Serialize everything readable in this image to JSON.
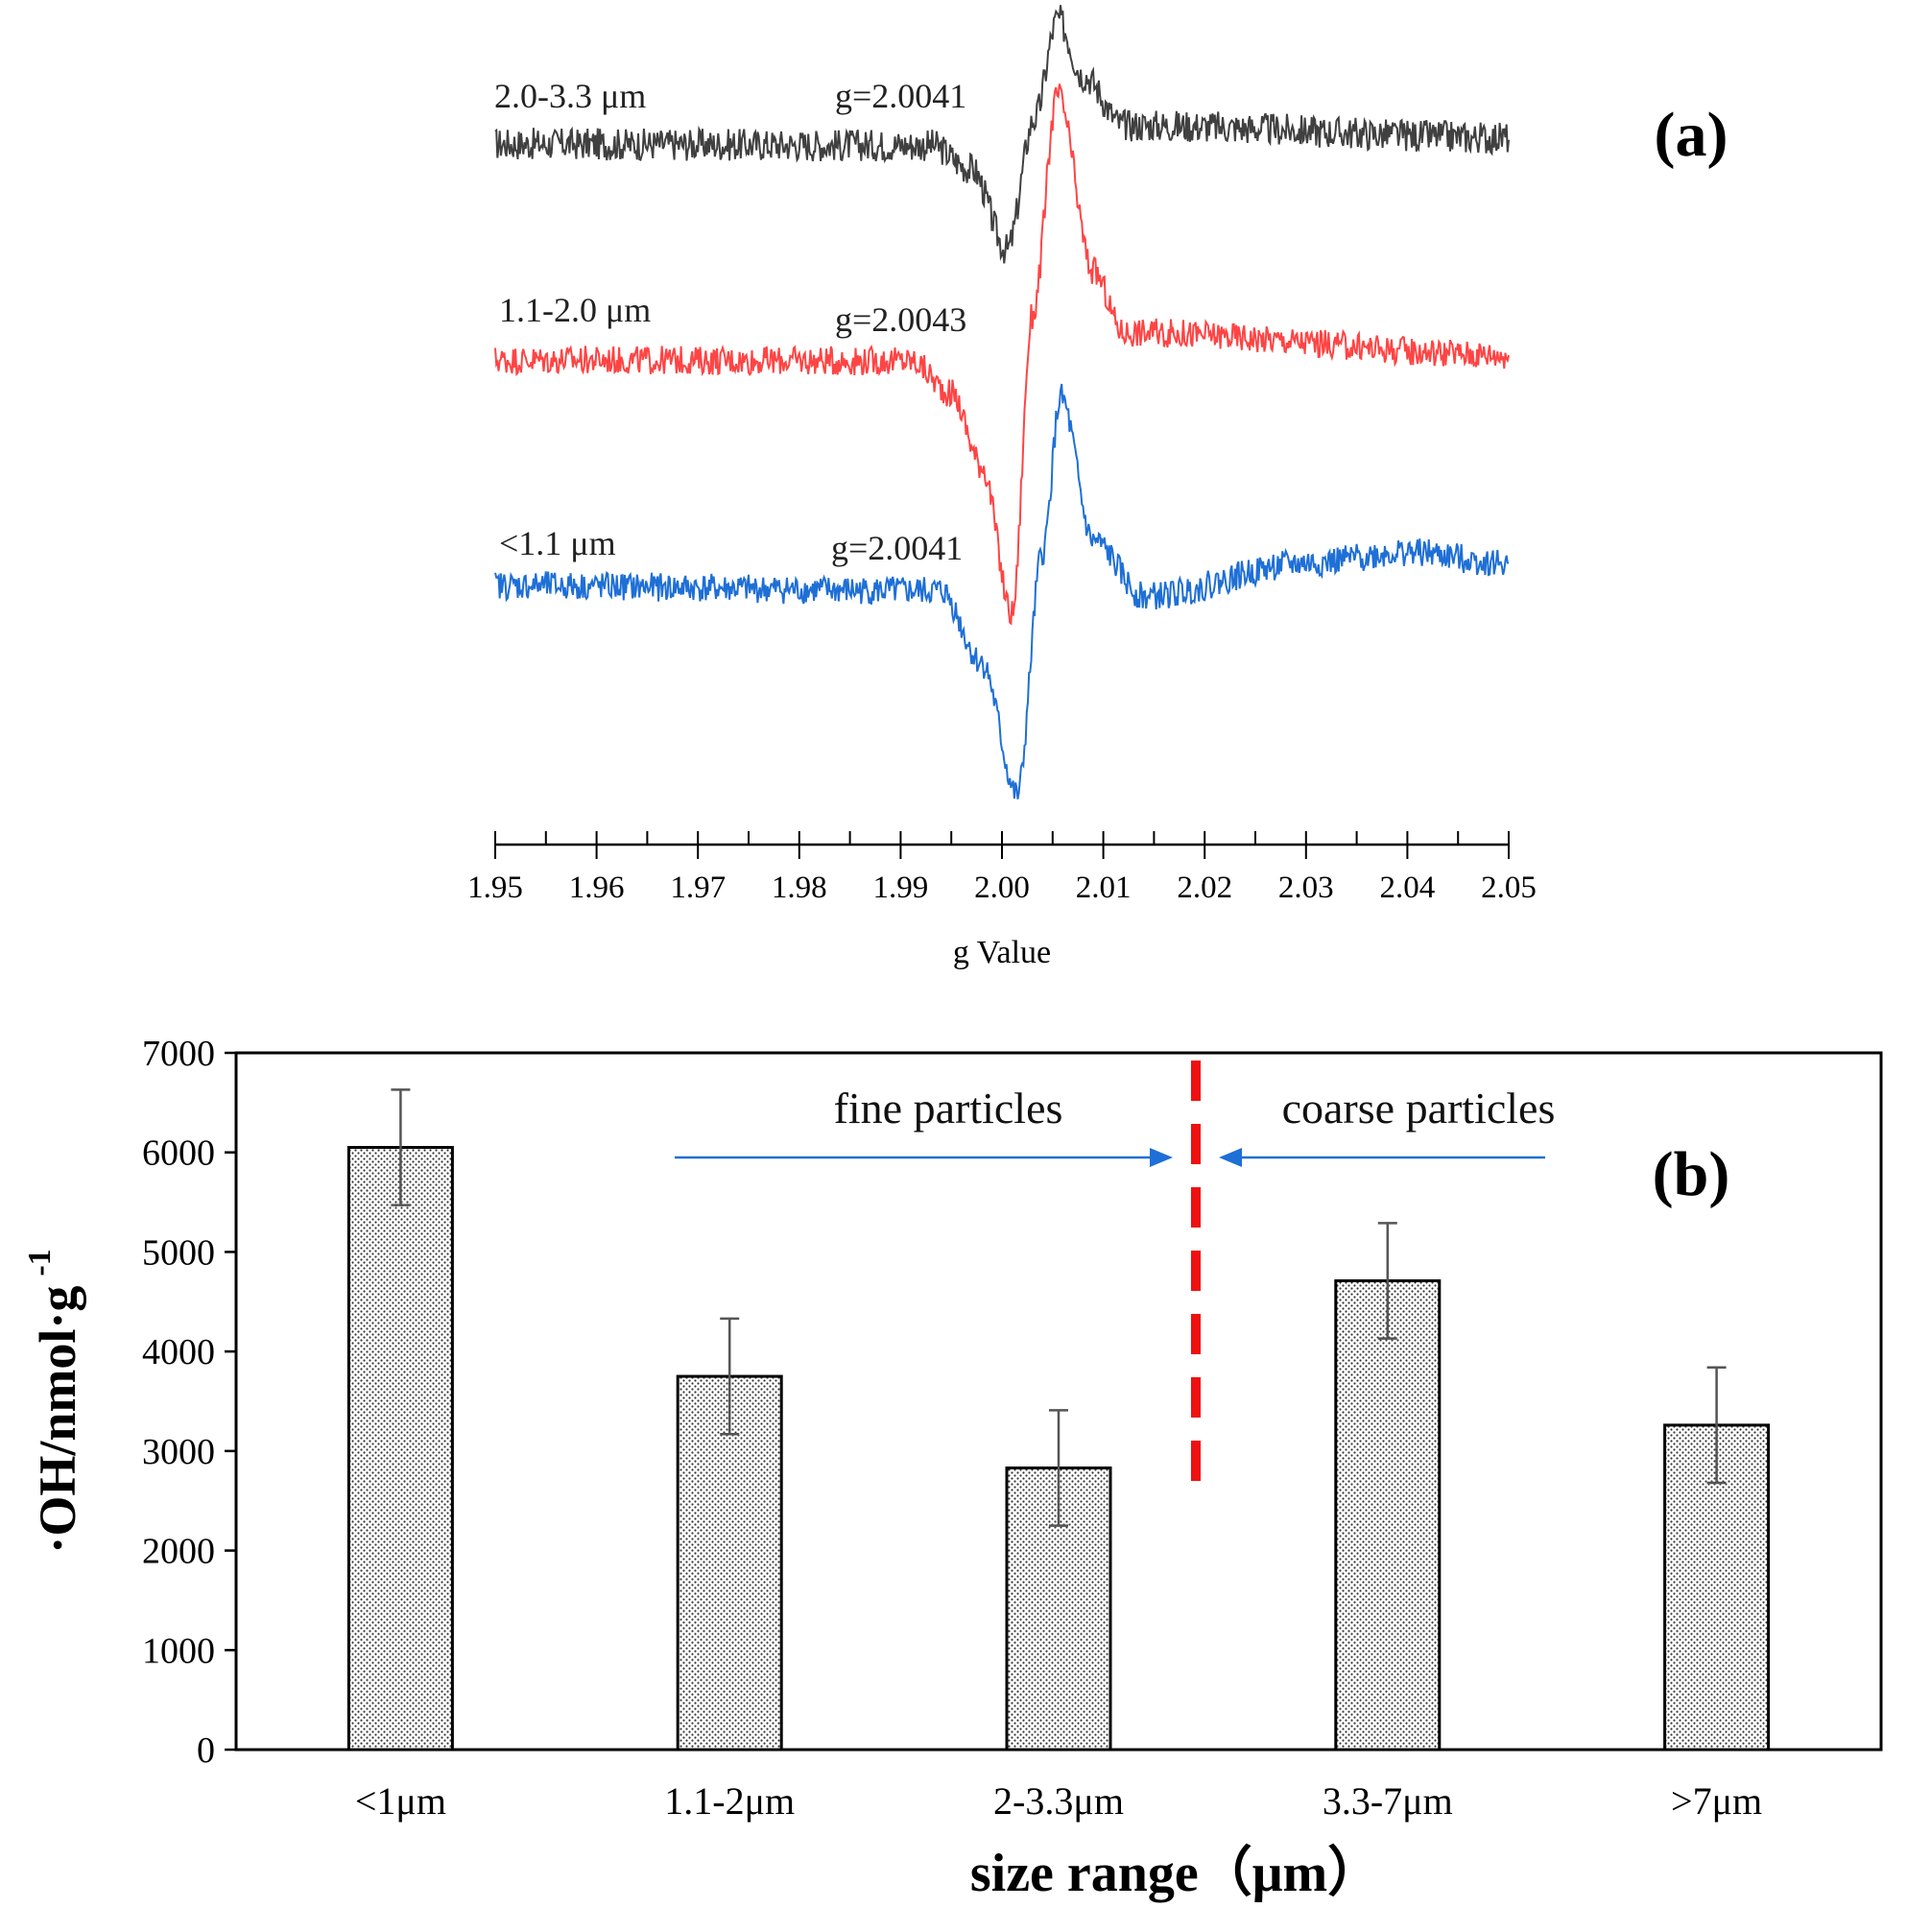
{
  "chart_data": [
    {
      "panel": "(a)",
      "type": "line",
      "xlabel": "g Value",
      "xlim": [
        1.95,
        2.05
      ],
      "xticks": [
        "1.95",
        "1.96",
        "1.97",
        "1.98",
        "1.99",
        "2.00",
        "2.01",
        "2.02",
        "2.03",
        "2.04",
        "2.05"
      ],
      "series": [
        {
          "name": "2.0-3.3 μm",
          "g_label": "g=2.0041",
          "color": "#404040",
          "key_points": [
            [
              1.95,
              0.0
            ],
            [
              1.993,
              -0.01
            ],
            [
              1.997,
              -0.2
            ],
            [
              2.0005,
              -0.85
            ],
            [
              2.0032,
              0.2
            ],
            [
              2.0055,
              1.0
            ],
            [
              2.008,
              0.55
            ],
            [
              2.012,
              0.15
            ],
            [
              2.05,
              0.05
            ]
          ]
        },
        {
          "name": "1.1-2.0 μm",
          "g_label": "g=2.0043",
          "color": "#ff4444",
          "key_points": [
            [
              1.95,
              0.0
            ],
            [
              1.991,
              -0.01
            ],
            [
              1.995,
              -0.3
            ],
            [
              1.998,
              -0.95
            ],
            [
              2.001,
              -2.3
            ],
            [
              2.003,
              0.4
            ],
            [
              2.0055,
              2.4
            ],
            [
              2.009,
              0.8
            ],
            [
              2.012,
              0.25
            ],
            [
              2.05,
              0.05
            ]
          ]
        },
        {
          "name": "<1.1 μm",
          "g_label": "g=2.0041",
          "color": "#1e6fd6",
          "key_points": [
            [
              1.95,
              0.0
            ],
            [
              1.994,
              -0.05
            ],
            [
              1.998,
              -0.7
            ],
            [
              2.0015,
              -1.9
            ],
            [
              2.004,
              0.3
            ],
            [
              2.0058,
              1.7
            ],
            [
              2.009,
              0.4
            ],
            [
              2.014,
              -0.1
            ],
            [
              2.03,
              0.2
            ],
            [
              2.04,
              0.3
            ],
            [
              2.05,
              0.2
            ]
          ]
        }
      ]
    },
    {
      "panel": "(b)",
      "type": "bar",
      "categories": [
        "<1μm",
        "1.1-2μm",
        "2-3.3μm",
        "3.3-7μm",
        ">7μm"
      ],
      "values": [
        6050,
        3750,
        2830,
        4710,
        3260
      ],
      "errors": [
        580,
        580,
        580,
        580,
        580
      ],
      "xlabel": "size range（μm）",
      "ylabel": "·OH/nmol·g",
      "ylabel_sup": "-1",
      "ylim": [
        0,
        7000
      ],
      "yticks": [
        "0",
        "1000",
        "2000",
        "3000",
        "4000",
        "5000",
        "6000",
        "7000"
      ],
      "annotations": {
        "fine": "fine particles",
        "coarse": "coarse particles"
      },
      "divider_color": "#ee1111",
      "bar_fill": "dotted"
    }
  ]
}
